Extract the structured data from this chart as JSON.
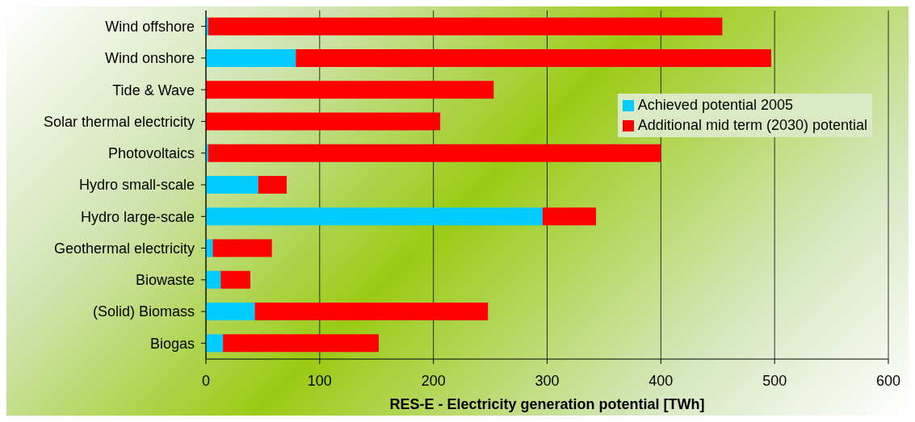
{
  "chart_data": {
    "type": "bar",
    "orientation": "horizontal",
    "stacked": true,
    "categories": [
      "Wind offshore",
      "Wind onshore",
      "Tide & Wave",
      "Solar thermal electricity",
      "Photovoltaics",
      "Hydro small-scale",
      "Hydro large-scale",
      "Geothermal electricity",
      "Biowaste",
      "(Solid) Biomass",
      "Biogas"
    ],
    "series": [
      {
        "name": "Achieved potential 2005",
        "color": "#00ccff",
        "values": [
          2,
          79,
          0,
          0,
          2,
          46,
          296,
          6,
          13,
          43,
          15
        ]
      },
      {
        "name": "Additional mid term (2030) potential",
        "color": "#ff0000",
        "values": [
          452,
          418,
          253,
          206,
          398,
          25,
          47,
          52,
          26,
          205,
          137
        ]
      }
    ],
    "xlabel": "RES-E - Electricity generation potential [TWh]",
    "xlim": [
      0,
      600
    ],
    "xticks": [
      0,
      100,
      200,
      300,
      400,
      500,
      600
    ],
    "grid": "x",
    "legend": "top right"
  }
}
